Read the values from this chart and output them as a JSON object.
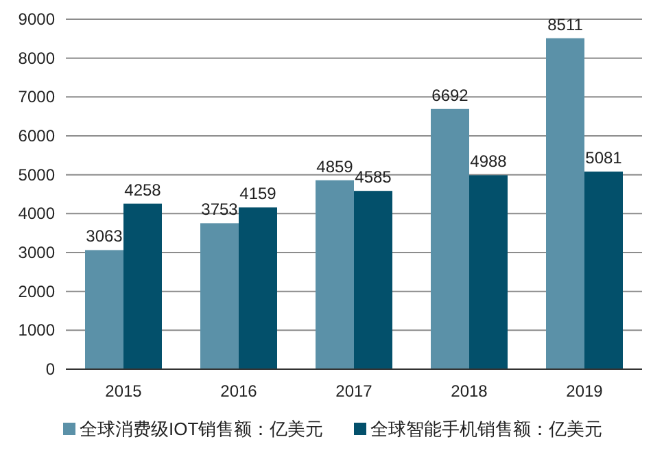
{
  "chart_data": {
    "type": "bar",
    "categories": [
      "2015",
      "2016",
      "2017",
      "2018",
      "2019"
    ],
    "series": [
      {
        "name": "全球消费级IOT销售额：亿美元",
        "color": "#5b91a8",
        "values": [
          3063,
          3753,
          4859,
          6692,
          8511
        ]
      },
      {
        "name": "全球智能手机销售额：亿美元",
        "color": "#03506b",
        "values": [
          4258,
          4159,
          4585,
          4988,
          5081
        ]
      }
    ],
    "ylim": [
      0,
      9000
    ],
    "yticks": [
      0,
      1000,
      2000,
      3000,
      4000,
      5000,
      6000,
      7000,
      8000,
      9000
    ],
    "grid": "y",
    "legend": "bottom",
    "data_labels": true
  }
}
